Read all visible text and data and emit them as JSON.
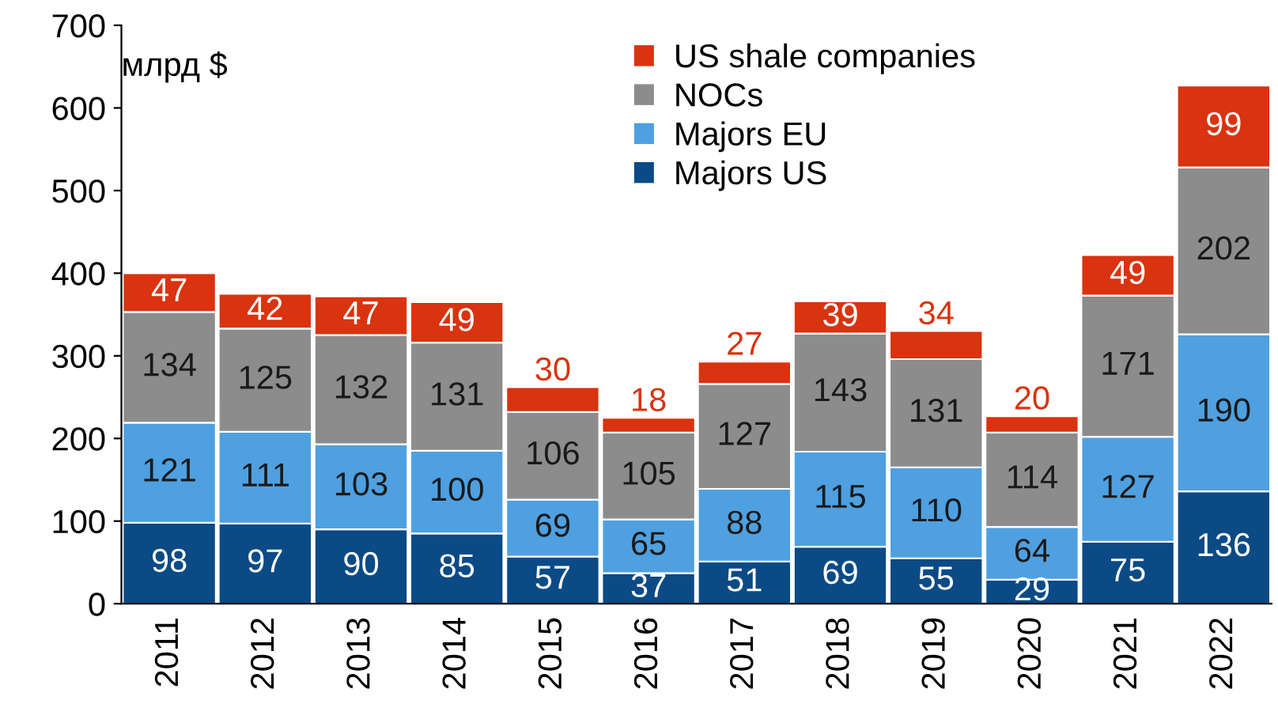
{
  "chart_data": {
    "type": "bar",
    "stacked": true,
    "ylabel": "млрд $",
    "categories": [
      "2011",
      "2012",
      "2013",
      "2014",
      "2015",
      "2016",
      "2017",
      "2018",
      "2019",
      "2020",
      "2021",
      "2022"
    ],
    "series": [
      {
        "name": "Majors US",
        "color": "#0b4a85",
        "values": [
          98,
          97,
          90,
          85,
          57,
          37,
          51,
          69,
          55,
          29,
          75,
          136
        ]
      },
      {
        "name": "Majors EU",
        "color": "#4fa0e0",
        "values": [
          121,
          111,
          103,
          100,
          69,
          65,
          88,
          115,
          110,
          64,
          127,
          190
        ]
      },
      {
        "name": "NOCs",
        "color": "#8c8c8c",
        "values": [
          134,
          125,
          132,
          131,
          106,
          105,
          127,
          143,
          131,
          114,
          171,
          202
        ]
      },
      {
        "name": "US shale companies",
        "color": "#d9330f",
        "values": [
          47,
          42,
          47,
          49,
          30,
          18,
          27,
          39,
          34,
          20,
          49,
          99
        ]
      }
    ],
    "ylim": [
      0,
      700
    ],
    "yticks": [
      0,
      100,
      200,
      300,
      400,
      500,
      600,
      700
    ],
    "data_labels": true,
    "legend": "top",
    "grid": false
  }
}
